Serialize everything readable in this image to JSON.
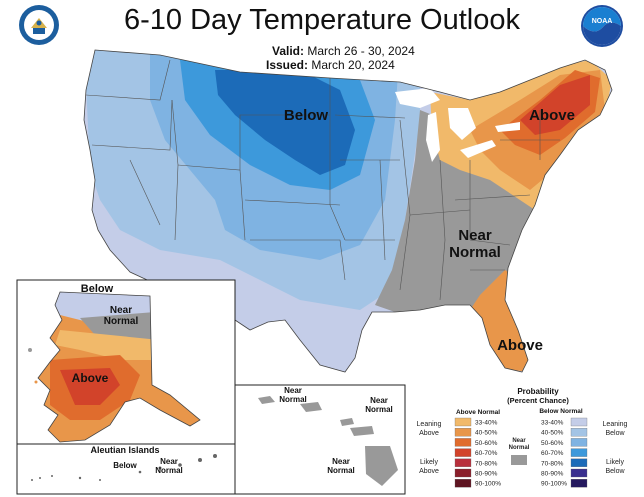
{
  "title": "6-10 Day Temperature Outlook",
  "valid": {
    "label": "Valid:",
    "value": "March 26 - 30, 2024"
  },
  "issued": {
    "label": "Issued:",
    "value": "March 20, 2024"
  },
  "logos": {
    "left": "doc-seal-icon",
    "right": "noaa-logo-icon",
    "noaa_text": "NOAA"
  },
  "conus_labels": {
    "below": "Below",
    "above_ne": "Above",
    "near": "Near",
    "normal": "Normal",
    "above_se": "Above"
  },
  "alaska_labels": {
    "below": "Below",
    "near": "Near",
    "normal": "Normal",
    "above": "Above"
  },
  "aleutian": {
    "title": "Aleutian Islands",
    "below": "Below",
    "near": "Near",
    "normal": "Normal"
  },
  "hawaii": {
    "near": "Near",
    "normal": "Normal"
  },
  "legend": {
    "title1": "Probability",
    "title2": "(Percent Chance)",
    "above_header": "Above Normal",
    "below_header": "Below Normal",
    "near_label1": "Near",
    "near_label2": "Normal",
    "leaning_above1": "Leaning",
    "leaning_above2": "Above",
    "likely_above1": "Likely",
    "likely_above2": "Above",
    "leaning_below1": "Leaning",
    "leaning_below2": "Below",
    "likely_below1": "Likely",
    "likely_below2": "Below",
    "bins": [
      "33-40%",
      "40-50%",
      "50-60%",
      "60-70%",
      "70-80%",
      "80-90%",
      "90-100%"
    ],
    "above_colors": [
      "#f1b96a",
      "#e8964a",
      "#e06c2d",
      "#d2432a",
      "#b82f3c",
      "#8a1e2a",
      "#5e1421"
    ],
    "below_colors": [
      "#c4cde8",
      "#a3c4e5",
      "#7fb3e2",
      "#3d99db",
      "#1c6bb8",
      "#3a2f8e",
      "#25195e"
    ],
    "near_color": "#999999"
  }
}
